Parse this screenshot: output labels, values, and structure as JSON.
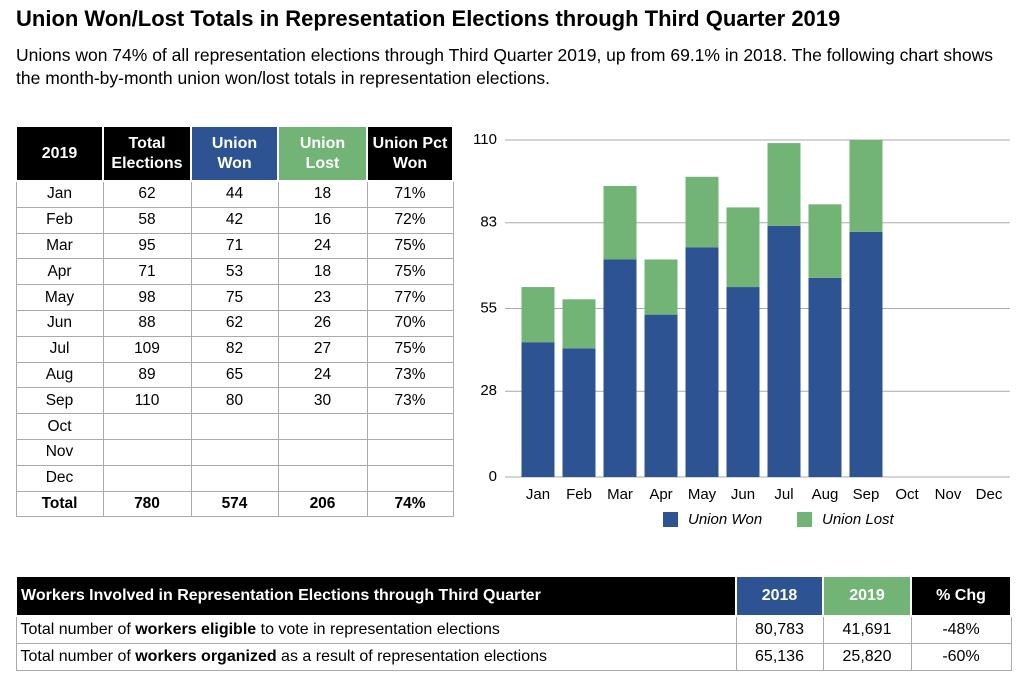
{
  "header": {
    "title": "Union Won/Lost Totals in Representation Elections through Third Quarter 2019",
    "subtitle": "Unions won 74% of all representation elections through Third Quarter 2019, up from 69.1% in 2018. The following chart shows the month-by-month union won/lost totals in representation elections."
  },
  "table": {
    "columns": [
      "2019",
      "Total Elections",
      "Union Won",
      "Union Lost",
      "Union Pct Won"
    ],
    "rows": [
      [
        "Jan",
        62,
        44,
        18,
        "71%"
      ],
      [
        "Feb",
        58,
        42,
        16,
        "72%"
      ],
      [
        "Mar",
        95,
        71,
        24,
        "75%"
      ],
      [
        "Apr",
        71,
        53,
        18,
        "75%"
      ],
      [
        "May",
        98,
        75,
        23,
        "77%"
      ],
      [
        "Jun",
        88,
        62,
        26,
        "70%"
      ],
      [
        "Jul",
        109,
        82,
        27,
        "75%"
      ],
      [
        "Aug",
        89,
        65,
        24,
        "73%"
      ],
      [
        "Sep",
        110,
        80,
        30,
        "73%"
      ],
      [
        "Oct",
        null,
        null,
        null,
        null
      ],
      [
        "Nov",
        null,
        null,
        null,
        null
      ],
      [
        "Dec",
        null,
        null,
        null,
        null
      ]
    ],
    "total": [
      "Total",
      780,
      574,
      206,
      "74%"
    ]
  },
  "chart_data": {
    "type": "bar",
    "stacked": true,
    "categories": [
      "Jan",
      "Feb",
      "Mar",
      "Apr",
      "May",
      "Jun",
      "Jul",
      "Aug",
      "Sep",
      "Oct",
      "Nov",
      "Dec"
    ],
    "series": [
      {
        "name": "Union Won",
        "color": "#2e5393",
        "values": [
          44,
          42,
          71,
          53,
          75,
          62,
          82,
          65,
          80,
          null,
          null,
          null
        ]
      },
      {
        "name": "Union Lost",
        "color": "#72b476",
        "values": [
          18,
          16,
          24,
          18,
          23,
          26,
          27,
          24,
          30,
          null,
          null,
          null
        ]
      }
    ],
    "ylim": [
      0,
      110
    ],
    "yticks": [
      0,
      28,
      55,
      83,
      110
    ],
    "grid": true,
    "legend": "bottom"
  },
  "workers": {
    "columns": [
      "Workers Involved in Representation Elections through Third Quarter",
      "2018",
      "2019",
      "% Chg"
    ],
    "rows": [
      {
        "label": [
          "Total number of ",
          "workers eligible",
          " to vote in representation elections"
        ],
        "values": [
          "80,783",
          "41,691",
          "-48%"
        ]
      },
      {
        "label": [
          "Total number of ",
          "workers organized",
          " as a result of representation elections"
        ],
        "values": [
          "65,136",
          "25,820",
          "-60%"
        ]
      }
    ]
  }
}
